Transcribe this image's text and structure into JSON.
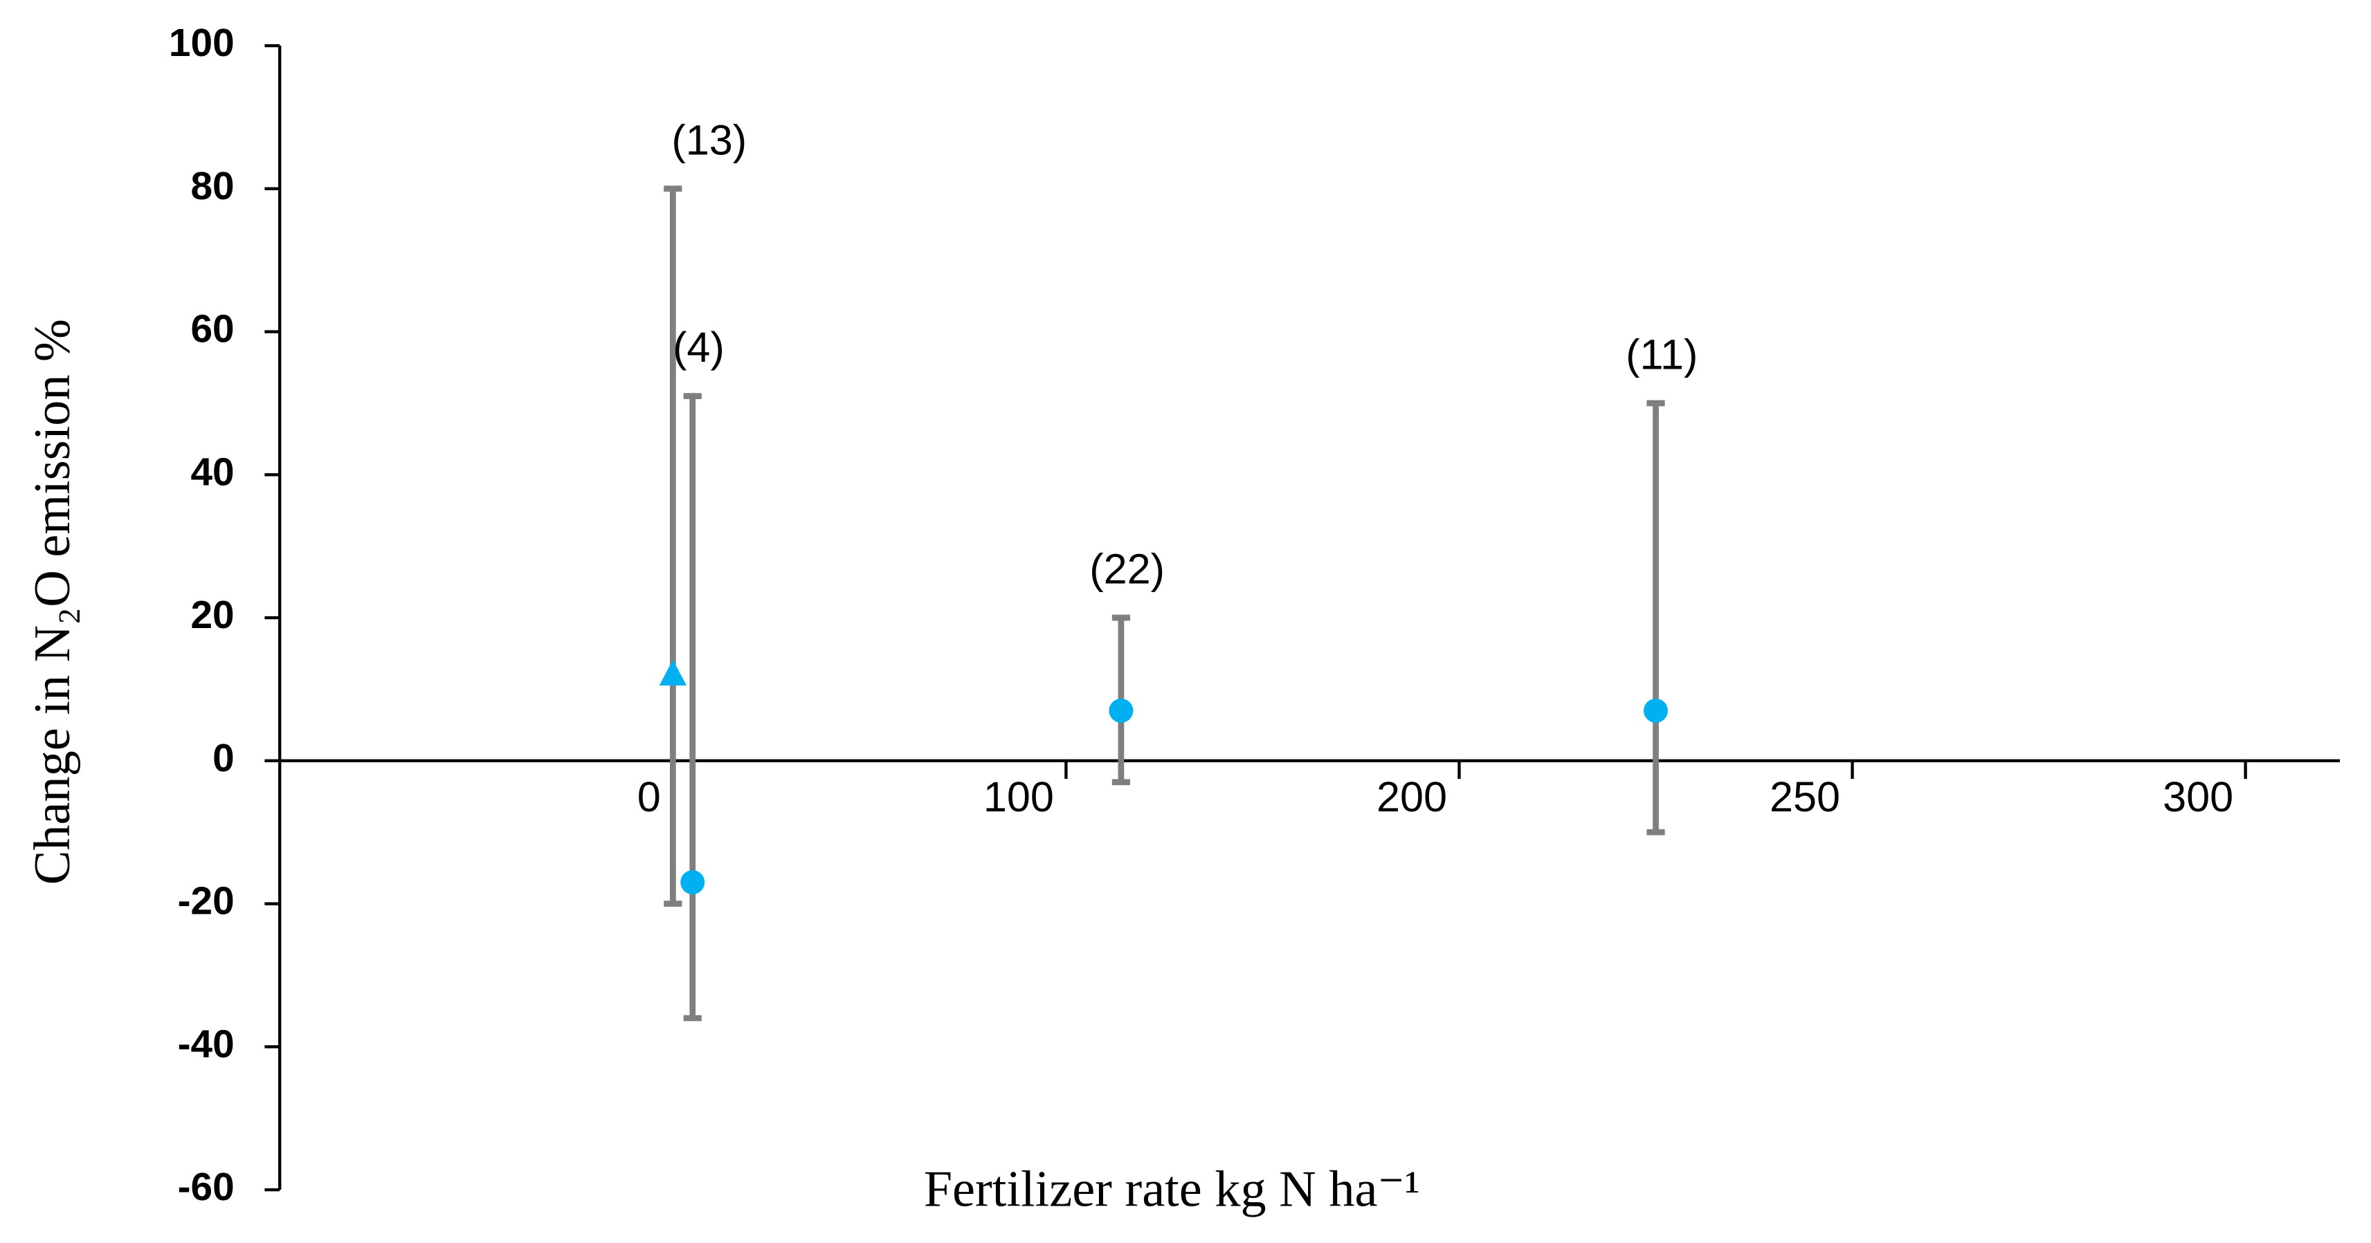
{
  "chart_data": {
    "type": "errorbar",
    "y_label": "Change in N₂O emission %",
    "x_label": "Fertilizer rate kg N ha⁻¹",
    "xlim": [
      -100,
      312
    ],
    "xticks": [
      0,
      100,
      200,
      250,
      300
    ],
    "ylim": [
      -60,
      100
    ],
    "yticks": [
      -60,
      -40,
      -20,
      0,
      20,
      40,
      60,
      80,
      100
    ],
    "marker_color": "#00b0f0",
    "bar_color": "#7f7f7f",
    "points": [
      {
        "x": 0,
        "y": 12,
        "low": -20,
        "high": 80,
        "marker": "triangle",
        "label": "(13)"
      },
      {
        "x": 5,
        "y": -17,
        "low": -36,
        "high": 51,
        "marker": "circle",
        "label": "(4)"
      },
      {
        "x": 114,
        "y": 7,
        "low": -3,
        "high": 20,
        "marker": "circle",
        "label": "(22)"
      },
      {
        "x": 225,
        "y": 7,
        "low": -10,
        "high": 50,
        "marker": "circle",
        "label": "(11)"
      }
    ]
  }
}
